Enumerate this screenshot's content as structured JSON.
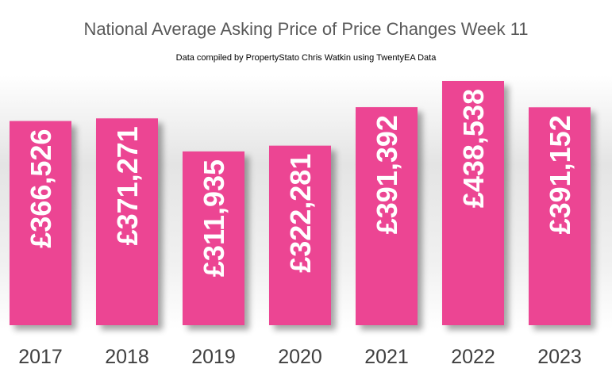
{
  "chart_data": {
    "type": "bar",
    "title": "National Average Asking Price of Price Changes Week 11",
    "subtitle": "Data compiled by PropertyStato Chris Watkin using TwentyEA Data",
    "categories": [
      "2017",
      "2018",
      "2019",
      "2020",
      "2021",
      "2022",
      "2023"
    ],
    "values": [
      366526,
      371271,
      311935,
      322281,
      391392,
      438538,
      391152
    ],
    "data_labels": [
      "£366,526",
      "£371,271",
      "£311,935",
      "£322,281",
      "£391,392",
      "£438,538",
      "£391,152"
    ],
    "xlabel": "",
    "ylabel": "",
    "ylim": [
      0,
      438538
    ],
    "grid": false,
    "legend": "none",
    "bar_color": "#EC4593",
    "label_color": "#FFFFFF",
    "tick_color": "#404040"
  }
}
